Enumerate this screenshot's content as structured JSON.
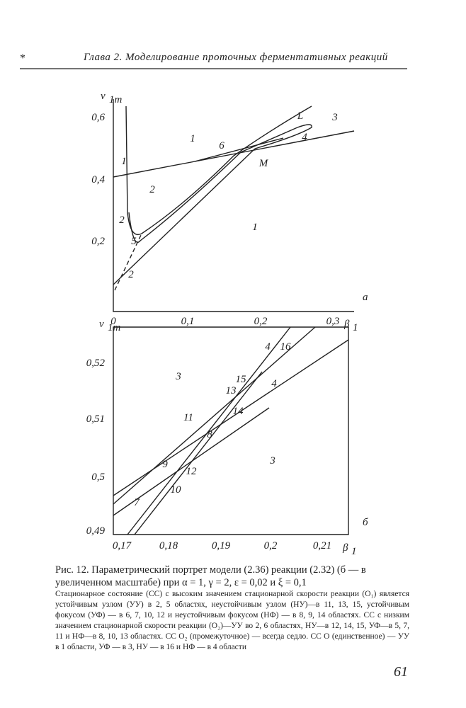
{
  "header": {
    "marker": "*",
    "title": "Глава 2. Моделирование проточных ферментативных реакций"
  },
  "figures": [
    {
      "y_label": {
        "main": "v",
        "sub": "1m"
      },
      "x_label": {
        "main": "β",
        "sub": "1"
      },
      "panel": "а",
      "xticks": [
        "0",
        "0,1",
        "0,2",
        "0,3"
      ],
      "yticks": [
        "0,6",
        "0,4",
        "0,2"
      ],
      "regions": [
        "1",
        "6",
        "L",
        "3",
        "4",
        "1",
        "M",
        "2",
        "1",
        "2",
        "5",
        "2"
      ]
    },
    {
      "y_label": {
        "main": "v",
        "sub": "1m"
      },
      "x_label": {
        "main": "β",
        "sub": "1"
      },
      "panel": "б",
      "xticks": [
        "0,17",
        "0,18",
        "0,19",
        "0,2",
        "0,21"
      ],
      "yticks": [
        "0,52",
        "0,51",
        "0,5",
        "0,49"
      ],
      "regions": [
        "4",
        "16",
        "3",
        "15",
        "13",
        "4",
        "11",
        "14",
        "8",
        "3",
        "9",
        "12",
        "10",
        "7"
      ]
    }
  ],
  "caption": "Рис. 12. Параметрический портрет модели (2.36) реакции (2.32) (б — в увеличенном масштабе) при α = 1, γ = 2, ε = 0,02 и ξ = 0,1",
  "description": "Стационарное состояние (СС) с высоким значением стационарной скорости реакции (O₁) является устойчивым узлом (УУ) в 2, 5 областях, неустойчивым узлом (НУ)—в 11, 13, 15, устойчивым фокусом (УФ) — в 6, 7, 10, 12 и неустойчивым фокусом (НФ) — в 8, 9, 14 областях. СС с низким значением стационарной скорости реакции (O₂)—УУ во 2, 6 областях, НУ—в 12, 14, 15, УФ—в 5, 7, 11 и НФ—в 8, 10, 13 областях. СС O₂ (промежуточное) — всегда седло. СС O (единственное) — УУ в 1 области, УФ — в 3, НУ — в 16 и НФ — в 4 области",
  "page_number": "61"
}
